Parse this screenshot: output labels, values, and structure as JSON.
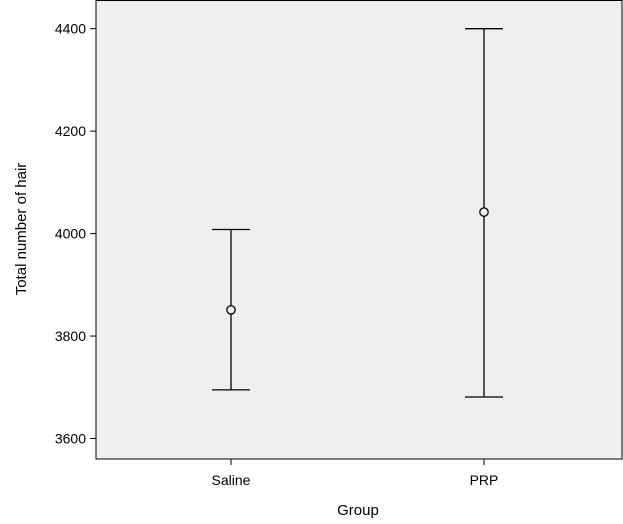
{
  "chart_data": {
    "type": "errorbar",
    "xlabel": "Group",
    "ylabel": "Total number of hair",
    "categories": [
      "Saline",
      "PRP"
    ],
    "points": [
      {
        "category": "Saline",
        "mean": 3851,
        "lower": 3695,
        "upper": 4008
      },
      {
        "category": "PRP",
        "mean": 4042,
        "lower": 3681,
        "upper": 4400
      }
    ],
    "ylim": [
      3560,
      4455
    ],
    "yticks": [
      3600,
      3800,
      4000,
      4200,
      4400
    ],
    "grid": false,
    "colors": {
      "plot_background": "#efefef",
      "axis": "#000000",
      "marks": "#000000"
    }
  }
}
